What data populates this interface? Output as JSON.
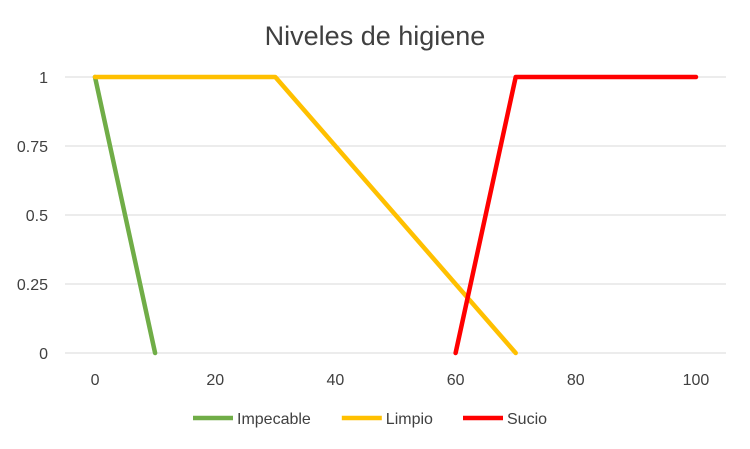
{
  "chart_data": {
    "type": "line",
    "title": "Niveles de higiene",
    "xlabel": "",
    "ylabel": "",
    "xlim": [
      -5,
      105
    ],
    "ylim": [
      0,
      1
    ],
    "x_ticks": [
      0,
      20,
      40,
      60,
      80,
      100
    ],
    "y_ticks": [
      0,
      0.25,
      0.5,
      0.75,
      1
    ],
    "y_tick_labels": [
      "0",
      "0.25",
      "0.5",
      "0.75",
      "1"
    ],
    "grid": true,
    "legend_position": "bottom",
    "series": [
      {
        "name": "Impecable",
        "color": "#70ad47",
        "points": [
          [
            0,
            1
          ],
          [
            10,
            0
          ]
        ]
      },
      {
        "name": "Limpio",
        "color": "#ffc000",
        "points": [
          [
            0,
            1
          ],
          [
            30,
            1
          ],
          [
            70,
            0
          ]
        ]
      },
      {
        "name": "Sucio",
        "color": "#ff0000",
        "points": [
          [
            60,
            0
          ],
          [
            70,
            1
          ],
          [
            100,
            1
          ]
        ]
      }
    ]
  }
}
